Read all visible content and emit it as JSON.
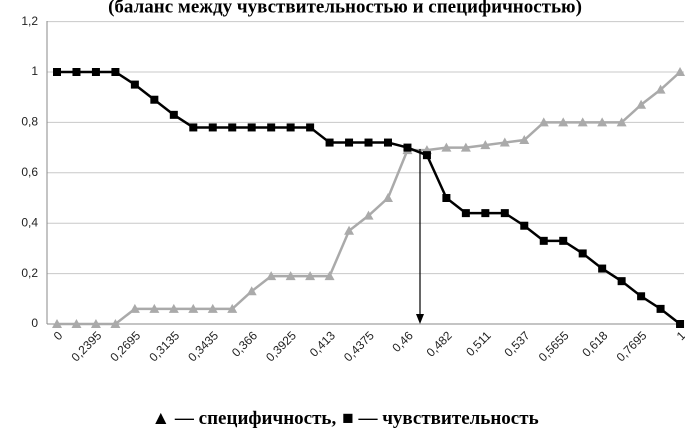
{
  "chart_data": {
    "type": "line",
    "title": "(баланс между чувствительностью и специфичностью)",
    "categories": [
      "0",
      null,
      "0,2395",
      null,
      "0,2695",
      null,
      "0,3135",
      null,
      "0,3435",
      null,
      "0,366",
      null,
      "0,3925",
      null,
      "0,413",
      null,
      "0,4375",
      null,
      "0,46",
      null,
      "0,482",
      null,
      "0,511",
      null,
      "0,537",
      null,
      "0,5655",
      null,
      "0,618",
      null,
      "0,7695",
      null,
      "1"
    ],
    "series": [
      {
        "name": "▲ — специфичность,",
        "color": "#aaaaaa",
        "marker": "triangle",
        "values": [
          0,
          0,
          0,
          0,
          0.06,
          0.06,
          0.06,
          0.06,
          0.06,
          0.06,
          0.13,
          0.19,
          0.19,
          0.19,
          0.19,
          0.37,
          0.43,
          0.5,
          0.69,
          0.69,
          0.7,
          0.7,
          0.71,
          0.72,
          0.73,
          0.8,
          0.8,
          0.8,
          0.8,
          0.8,
          0.87,
          0.93,
          1
        ]
      },
      {
        "name": "■ — чувствительность",
        "color": "#000000",
        "marker": "square",
        "values": [
          1,
          1,
          1,
          1,
          0.95,
          0.89,
          0.83,
          0.78,
          0.78,
          0.78,
          0.78,
          0.78,
          0.78,
          0.78,
          0.72,
          0.72,
          0.72,
          0.72,
          0.7,
          0.67,
          0.5,
          0.44,
          0.44,
          0.44,
          0.39,
          0.33,
          0.33,
          0.28,
          0.22,
          0.17,
          0.11,
          0.06,
          0
        ]
      }
    ],
    "ylim": [
      0,
      1.2
    ],
    "yticks": [
      0,
      {
        "value": 0.2,
        "label": "0,2"
      },
      {
        "value": 0.4,
        "label": "0,4"
      },
      {
        "value": 0.6,
        "label": "0,6"
      },
      {
        "value": 0.8,
        "label": "0,8"
      },
      1,
      {
        "value": 1.2,
        "label": "1,2"
      }
    ],
    "grid": true
  }
}
